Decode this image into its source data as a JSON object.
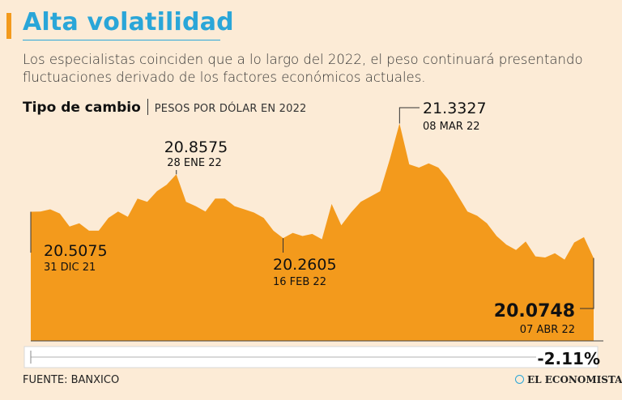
{
  "header": {
    "title": "Alta volatilidad",
    "subtitle": "Los especialistas coinciden que a lo largo del 2022, el peso continuará presentando fluctuaciones derivado de los factores económicos actuales.",
    "accent_color": "#f39a1c",
    "title_color": "#2aa6d8"
  },
  "chart_header": {
    "name": "Tipo de cambio",
    "unit": "PESOS POR DÓLAR EN 2022"
  },
  "chart_data": {
    "type": "area",
    "title": "Tipo de cambio",
    "ylabel": "Pesos por dólar",
    "ylim": [
      19.3,
      21.45
    ],
    "area_color": "#f39a1c",
    "values": [
      20.5075,
      20.51,
      20.53,
      20.49,
      20.37,
      20.4,
      20.33,
      20.33,
      20.45,
      20.51,
      20.46,
      20.63,
      20.6,
      20.7,
      20.76,
      20.8575,
      20.6,
      20.56,
      20.51,
      20.63,
      20.63,
      20.56,
      20.53,
      20.5,
      20.45,
      20.33,
      20.2605,
      20.31,
      20.28,
      20.3,
      20.25,
      20.58,
      20.38,
      20.5,
      20.6,
      20.65,
      20.7,
      21.0,
      21.3327,
      20.95,
      20.92,
      20.96,
      20.92,
      20.81,
      20.66,
      20.51,
      20.47,
      20.4,
      20.28,
      20.2,
      20.15,
      20.23,
      20.09,
      20.08,
      20.12,
      20.06,
      20.22,
      20.27,
      20.0748
    ],
    "annotations": [
      {
        "value": "20.5075",
        "date": "31 DIC 21",
        "index": 0
      },
      {
        "value": "20.8575",
        "date": "28 ENE 22",
        "index": 15
      },
      {
        "value": "20.2605",
        "date": "16 FEB 22",
        "index": 26
      },
      {
        "value": "21.3327",
        "date": "08 MAR 22",
        "index": 38
      },
      {
        "value": "20.0748",
        "date": "07 ABR 22",
        "index": 58
      }
    ],
    "change": "-2.11%"
  },
  "footer": {
    "source": "FUENTE: BANXICO",
    "brand": "EL ECONOMISTA"
  }
}
